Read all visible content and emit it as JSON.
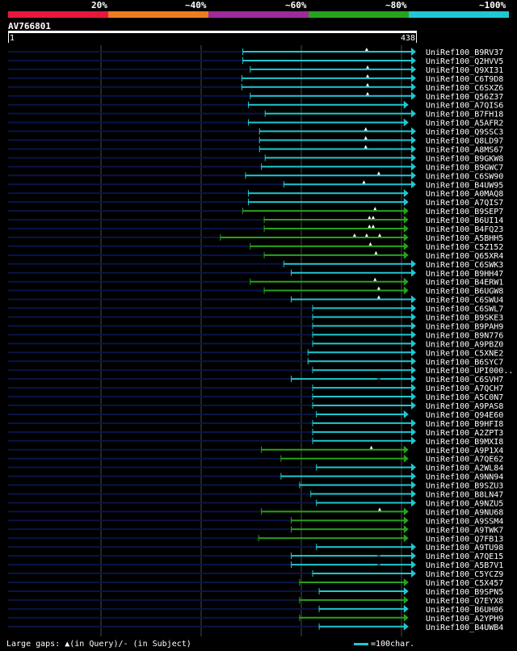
{
  "legend": {
    "labels": [
      "20%",
      "~40%",
      "~60%",
      "~80%",
      "~100%"
    ],
    "colors": [
      "#e8183c",
      "#ec7c1e",
      "#9c2b9c",
      "#26a31c",
      "#1ec8d2"
    ]
  },
  "query": {
    "id": "AV766801",
    "start_label": "1",
    "end_label": "438",
    "length": 438
  },
  "status_colors": {
    "query_line": "#0a1446",
    "grid": "#4a4a4a",
    "triangle": "#ffffff"
  },
  "hits": [
    {
      "name": "UniRef100_B9RV37",
      "start": 252,
      "end": 438,
      "color": "cyan",
      "arrow": true,
      "gaps": [
        [
          385,
          "q"
        ]
      ]
    },
    {
      "name": "UniRef100_Q2HVV5",
      "start": 252,
      "end": 438,
      "color": "cyan",
      "arrow": true,
      "gaps": []
    },
    {
      "name": "UniRef100_Q9XI31",
      "start": 260,
      "end": 438,
      "color": "cyan",
      "arrow": true,
      "gaps": [
        [
          386,
          "q"
        ]
      ]
    },
    {
      "name": "UniRef100_C6T9D8",
      "start": 251,
      "end": 438,
      "color": "cyan",
      "arrow": true,
      "gaps": [
        [
          386,
          "q"
        ]
      ]
    },
    {
      "name": "UniRef100_C6SXZ6",
      "start": 251,
      "end": 438,
      "color": "cyan",
      "arrow": true,
      "gaps": [
        [
          386,
          "q"
        ]
      ]
    },
    {
      "name": "UniRef100_Q56Z37",
      "start": 260,
      "end": 438,
      "color": "cyan",
      "arrow": true,
      "gaps": [
        [
          386,
          "q"
        ]
      ]
    },
    {
      "name": "UniRef100_A7QIS6",
      "start": 258,
      "end": 430,
      "color": "cyan",
      "arrow": true,
      "gaps": []
    },
    {
      "name": "UniRef100_B7FH18",
      "start": 276,
      "end": 438,
      "color": "cyan",
      "arrow": true,
      "gaps": []
    },
    {
      "name": "UniRef100_A5AFR2",
      "start": 258,
      "end": 430,
      "color": "cyan",
      "arrow": true,
      "gaps": []
    },
    {
      "name": "UniRef100_Q9SSC3",
      "start": 270,
      "end": 438,
      "color": "cyan",
      "arrow": true,
      "gaps": [
        [
          384,
          "q"
        ]
      ]
    },
    {
      "name": "UniRef100_Q8LD97",
      "start": 270,
      "end": 438,
      "color": "cyan",
      "arrow": true,
      "gaps": [
        [
          384,
          "q"
        ]
      ]
    },
    {
      "name": "UniRef100_A8MS67",
      "start": 270,
      "end": 438,
      "color": "cyan",
      "arrow": true,
      "gaps": [
        [
          384,
          "q"
        ]
      ]
    },
    {
      "name": "UniRef100_B9GKW8",
      "start": 276,
      "end": 438,
      "color": "cyan",
      "arrow": true,
      "gaps": []
    },
    {
      "name": "UniRef100_B9GWC7",
      "start": 272,
      "end": 438,
      "color": "cyan",
      "arrow": true,
      "gaps": []
    },
    {
      "name": "UniRef100_C6SW90",
      "start": 255,
      "end": 438,
      "color": "cyan",
      "arrow": true,
      "gaps": [
        [
          398,
          "q"
        ]
      ]
    },
    {
      "name": "UniRef100_B4UW95",
      "start": 296,
      "end": 438,
      "color": "cyan",
      "arrow": true,
      "gaps": [
        [
          382,
          "q"
        ]
      ]
    },
    {
      "name": "UniRef100_A0MAQ8",
      "start": 258,
      "end": 430,
      "color": "cyan",
      "arrow": true,
      "gaps": []
    },
    {
      "name": "UniRef100_A7QIS7",
      "start": 258,
      "end": 430,
      "color": "cyan",
      "arrow": true,
      "gaps": []
    },
    {
      "name": "UniRef100_B9SEP7",
      "start": 252,
      "end": 430,
      "color": "green",
      "arrow": true,
      "gaps": [
        [
          394,
          "q"
        ]
      ]
    },
    {
      "name": "UniRef100_B6UI14",
      "start": 275,
      "end": 430,
      "color": "green",
      "arrow": true,
      "gaps": [
        [
          388,
          "q"
        ],
        [
          392,
          "q"
        ]
      ]
    },
    {
      "name": "UniRef100_B4FQ23",
      "start": 275,
      "end": 430,
      "color": "green",
      "arrow": true,
      "gaps": [
        [
          388,
          "q"
        ],
        [
          392,
          "q"
        ]
      ]
    },
    {
      "name": "UniRef100_A5BHH5",
      "start": 228,
      "end": 430,
      "color": "green",
      "arrow": true,
      "gaps": [
        [
          372,
          "q"
        ],
        [
          385,
          "q"
        ],
        [
          399,
          "q"
        ]
      ]
    },
    {
      "name": "UniRef100_C5Z152",
      "start": 260,
      "end": 430,
      "color": "green",
      "arrow": true,
      "gaps": [
        [
          389,
          "q"
        ]
      ]
    },
    {
      "name": "UniRef100_Q65XR4",
      "start": 275,
      "end": 430,
      "color": "green",
      "arrow": true,
      "gaps": [
        [
          395,
          "q"
        ]
      ]
    },
    {
      "name": "UniRef100_C6SWK3",
      "start": 296,
      "end": 438,
      "color": "cyan",
      "arrow": true,
      "gaps": []
    },
    {
      "name": "UniRef100_B9HH47",
      "start": 304,
      "end": 438,
      "color": "cyan",
      "arrow": true,
      "gaps": []
    },
    {
      "name": "UniRef100_B4ERW1",
      "start": 260,
      "end": 430,
      "color": "green",
      "arrow": true,
      "gaps": [
        [
          394,
          "q"
        ]
      ]
    },
    {
      "name": "UniRef100_B6UGW8",
      "start": 275,
      "end": 430,
      "color": "green",
      "arrow": true,
      "gaps": [
        [
          398,
          "q"
        ]
      ]
    },
    {
      "name": "UniRef100_C6SWU4",
      "start": 304,
      "end": 438,
      "color": "cyan",
      "arrow": true,
      "gaps": [
        [
          398,
          "q"
        ]
      ]
    },
    {
      "name": "UniRef100_C6SWL7",
      "start": 327,
      "end": 438,
      "color": "cyan",
      "arrow": true,
      "gaps": []
    },
    {
      "name": "UniRef100_B9SKE3",
      "start": 327,
      "end": 438,
      "color": "cyan",
      "arrow": true,
      "gaps": []
    },
    {
      "name": "UniRef100_B9PAH9",
      "start": 327,
      "end": 438,
      "color": "cyan",
      "arrow": true,
      "gaps": []
    },
    {
      "name": "UniRef100_B9N776",
      "start": 327,
      "end": 438,
      "color": "cyan",
      "arrow": true,
      "gaps": []
    },
    {
      "name": "UniRef100_A9PBZ0",
      "start": 327,
      "end": 438,
      "color": "cyan",
      "arrow": true,
      "gaps": []
    },
    {
      "name": "UniRef100_C5XNE2",
      "start": 322,
      "end": 438,
      "color": "cyan",
      "arrow": true,
      "gaps": []
    },
    {
      "name": "UniRef100_B6SYC7",
      "start": 322,
      "end": 438,
      "color": "cyan",
      "arrow": true,
      "gaps": []
    },
    {
      "name": "UniRef100_UPI000..",
      "start": 327,
      "end": 438,
      "color": "cyan",
      "arrow": true,
      "gaps": []
    },
    {
      "name": "UniRef100_C6SVH7",
      "start": 304,
      "end": 438,
      "color": "cyan",
      "arrow": true,
      "gaps": [
        [
          398,
          "s"
        ]
      ]
    },
    {
      "name": "UniRef100_A7QCH7",
      "start": 327,
      "end": 438,
      "color": "cyan",
      "arrow": true,
      "gaps": []
    },
    {
      "name": "UniRef100_A5C0N7",
      "start": 327,
      "end": 438,
      "color": "cyan",
      "arrow": true,
      "gaps": []
    },
    {
      "name": "UniRef100_A9PAS8",
      "start": 327,
      "end": 438,
      "color": "cyan",
      "arrow": true,
      "gaps": []
    },
    {
      "name": "UniRef100_Q94E60",
      "start": 331,
      "end": 430,
      "color": "cyan",
      "arrow": true,
      "gaps": []
    },
    {
      "name": "UniRef100_B9HFI8",
      "start": 327,
      "end": 438,
      "color": "cyan",
      "arrow": true,
      "gaps": []
    },
    {
      "name": "UniRef100_A2ZPT3",
      "start": 327,
      "end": 438,
      "color": "cyan",
      "arrow": true,
      "gaps": []
    },
    {
      "name": "UniRef100_B9MXI8",
      "start": 327,
      "end": 438,
      "color": "cyan",
      "arrow": true,
      "gaps": []
    },
    {
      "name": "UniRef100_A9P1X4",
      "start": 272,
      "end": 430,
      "color": "green",
      "arrow": true,
      "gaps": [
        [
          390,
          "q"
        ]
      ]
    },
    {
      "name": "UniRef100_A7QE62",
      "start": 293,
      "end": 430,
      "color": "green",
      "arrow": true,
      "gaps": []
    },
    {
      "name": "UniRef100_A2WL84",
      "start": 331,
      "end": 438,
      "color": "cyan",
      "arrow": true,
      "gaps": []
    },
    {
      "name": "UniRef100_A9NN94",
      "start": 293,
      "end": 438,
      "color": "cyan",
      "arrow": true,
      "gaps": []
    },
    {
      "name": "UniRef100_B9SZU3",
      "start": 313,
      "end": 438,
      "color": "cyan",
      "arrow": true,
      "gaps": []
    },
    {
      "name": "UniRef100_B8LN47",
      "start": 325,
      "end": 438,
      "color": "cyan",
      "arrow": true,
      "gaps": []
    },
    {
      "name": "UniRef100_A9NZU5",
      "start": 331,
      "end": 438,
      "color": "cyan",
      "arrow": true,
      "gaps": []
    },
    {
      "name": "UniRef100_A9NU68",
      "start": 272,
      "end": 430,
      "color": "green",
      "arrow": true,
      "gaps": [
        [
          399,
          "q"
        ]
      ]
    },
    {
      "name": "UniRef100_A9SSM4",
      "start": 304,
      "end": 430,
      "color": "green",
      "arrow": true,
      "gaps": []
    },
    {
      "name": "UniRef100_A9TWK7",
      "start": 304,
      "end": 430,
      "color": "green",
      "arrow": true,
      "gaps": []
    },
    {
      "name": "UniRef100_Q7FB13",
      "start": 269,
      "end": 430,
      "color": "green",
      "arrow": true,
      "gaps": []
    },
    {
      "name": "UniRef100_A9TU98",
      "start": 331,
      "end": 438,
      "color": "cyan",
      "arrow": true,
      "gaps": []
    },
    {
      "name": "UniRef100_A7QE15",
      "start": 304,
      "end": 438,
      "color": "cyan",
      "arrow": true,
      "gaps": [
        [
          398,
          "s"
        ]
      ]
    },
    {
      "name": "UniRef100_A5B7V1",
      "start": 304,
      "end": 438,
      "color": "cyan",
      "arrow": true,
      "gaps": [
        [
          398,
          "s"
        ]
      ]
    },
    {
      "name": "UniRef100_C5YCZ9",
      "start": 327,
      "end": 438,
      "color": "cyan",
      "arrow": true,
      "gaps": []
    },
    {
      "name": "UniRef100_C5X457",
      "start": 313,
      "end": 430,
      "color": "green",
      "arrow": true,
      "gaps": []
    },
    {
      "name": "UniRef100_B9SPN5",
      "start": 334,
      "end": 430,
      "color": "cyan",
      "arrow": true,
      "gaps": []
    },
    {
      "name": "UniRef100_Q7EYX8",
      "start": 313,
      "end": 430,
      "color": "green",
      "arrow": true,
      "gaps": []
    },
    {
      "name": "UniRef100_B6UH06",
      "start": 334,
      "end": 430,
      "color": "cyan",
      "arrow": true,
      "gaps": []
    },
    {
      "name": "UniRef100_A2YPH9",
      "start": 313,
      "end": 430,
      "color": "green",
      "arrow": true,
      "gaps": []
    },
    {
      "name": "UniRef100_B4UWB4",
      "start": 334,
      "end": 430,
      "color": "cyan",
      "arrow": true,
      "gaps": []
    }
  ],
  "footer": {
    "gaps_text": "Large gaps: ▲(in Query)/- (in Subject)",
    "scale_text": "=100char."
  }
}
